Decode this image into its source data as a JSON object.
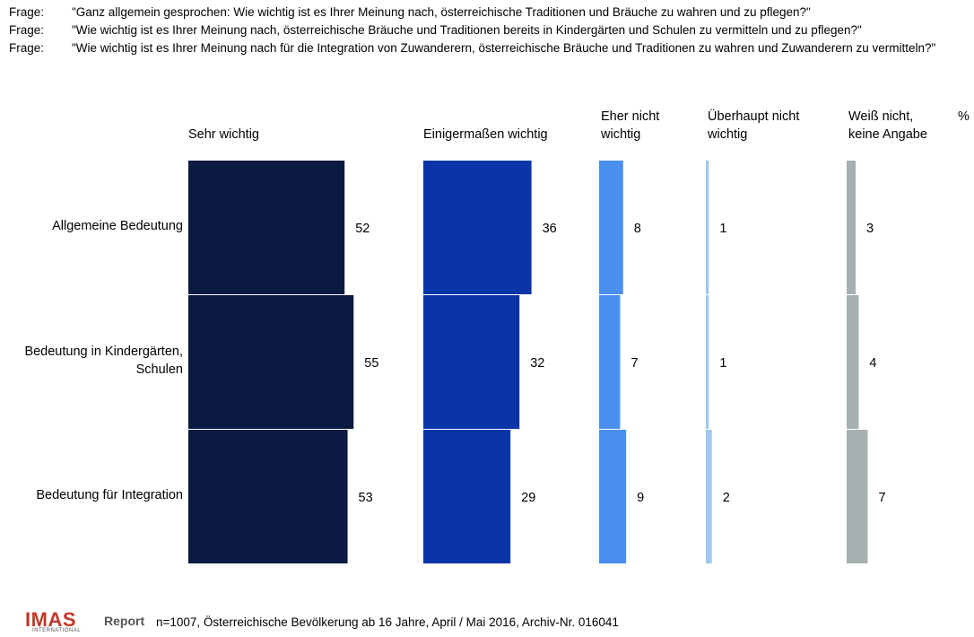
{
  "questions": {
    "prefix": "Frage:",
    "items": [
      "\"Ganz allgemein gesprochen: Wie wichtig ist es Ihrer Meinung nach, österreichische Traditionen und Bräuche zu wahren und zu pflegen?\"",
      "\"Wie wichtig ist es Ihrer Meinung nach, österreichische Bräuche und Traditionen bereits in Kindergärten und Schulen zu vermitteln und zu pflegen?\"",
      "\"Wie wichtig ist es Ihrer Meinung nach für die Integration von Zuwanderern, österreichische Bräuche und Traditionen zu wahren und Zuwanderern zu vermitteln?\""
    ]
  },
  "unit": "%",
  "footer": "n=1007, Österreichische Bevölkerung ab 16 Jahre, April / Mai 2016, Archiv-Nr. 016041",
  "logo": {
    "main": "IMAS",
    "suffix": "Report",
    "sub": "INTERNATIONAL"
  },
  "colors": {
    "sehr_wichtig": "#0b1a40",
    "einigermassen": "#0b35a6",
    "eher_nicht": "#4a8fef",
    "ueberhaupt_nicht": "#9fc8ec",
    "weiss_nicht": "#a5b1b0"
  },
  "chart_data": {
    "type": "bar",
    "categories": [
      "Allgemeine Bedeutung",
      "Bedeutung in Kindergärten,\nSchulen",
      "Bedeutung für Integration"
    ],
    "series": [
      {
        "name": "Sehr wichtig",
        "values": [
          52,
          55,
          53
        ]
      },
      {
        "name": "Einigermaßen wichtig",
        "values": [
          36,
          32,
          29
        ]
      },
      {
        "name": "Eher nicht\nwichtig",
        "values": [
          8,
          7,
          9
        ]
      },
      {
        "name": "Überhaupt nicht\nwichtig",
        "values": [
          1,
          1,
          2
        ]
      },
      {
        "name": "Weiß nicht,\nkeine Angabe",
        "values": [
          3,
          4,
          7
        ]
      }
    ],
    "orientation": "horizontal",
    "ylabel": "%"
  }
}
